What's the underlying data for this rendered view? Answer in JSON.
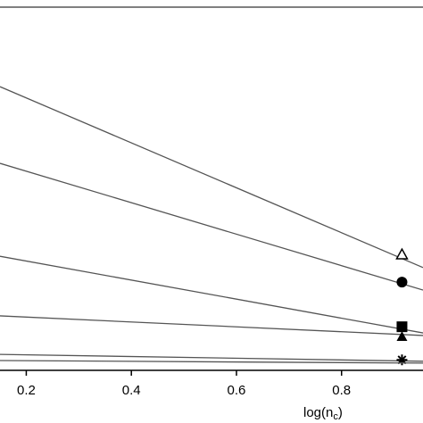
{
  "chart_data": {
    "type": "line",
    "x_label": {
      "main": "log(n",
      "sub": "c",
      "end": ")"
    },
    "xlim": [
      0.15,
      0.955
    ],
    "xticks": [
      0.2,
      0.4,
      0.6,
      0.8
    ],
    "ylim": [
      0,
      1
    ],
    "color": "#555555",
    "series": [
      {
        "x": [
          0.15,
          0.955
        ],
        "values": [
          0.781,
          0.283
        ],
        "marker": {
          "x": 0.915,
          "y": 0.319,
          "shape": "open-triangle"
        }
      },
      {
        "x": [
          0.15,
          0.955
        ],
        "values": [
          0.57,
          0.221
        ],
        "marker": {
          "x": 0.915,
          "y": 0.243,
          "shape": "circle"
        }
      },
      {
        "x": [
          0.15,
          0.955
        ],
        "values": [
          0.314,
          0.103
        ],
        "marker": {
          "x": 0.915,
          "y": 0.12,
          "shape": "square"
        }
      },
      {
        "x": [
          0.15,
          0.955
        ],
        "values": [
          0.15,
          0.096
        ],
        "marker": {
          "x": 0.915,
          "y": 0.093,
          "shape": "triangle"
        }
      },
      {
        "x": [
          0.15,
          0.955
        ],
        "values": [
          0.044,
          0.025
        ],
        "marker": {
          "x": 0.915,
          "y": 0.029,
          "shape": "star"
        }
      },
      {
        "x": [
          0.15,
          0.955
        ],
        "values": [
          0.027,
          0.02
        ]
      }
    ]
  }
}
